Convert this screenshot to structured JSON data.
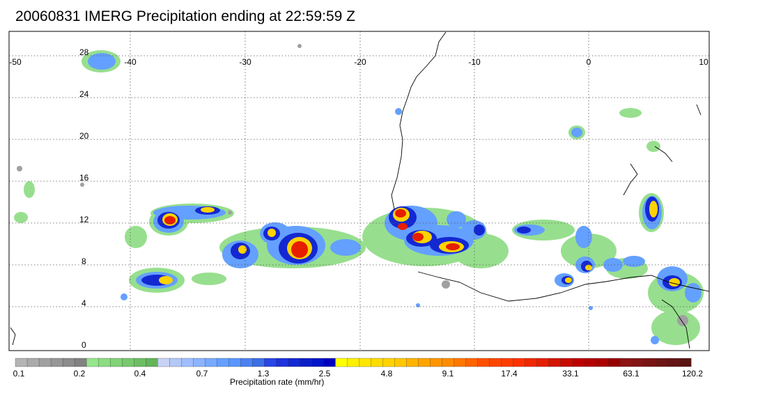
{
  "title": "20060831 IMERG Precipitation ending at 22:59:59 Z",
  "map": {
    "lon_labels": [
      "-50",
      "-40",
      "-30",
      "-20",
      "-10",
      "0",
      "10"
    ],
    "lat_labels": [
      "28",
      "24",
      "20",
      "16",
      "12",
      "8",
      "4",
      "0"
    ],
    "lon_range": [
      -50,
      10
    ],
    "lat_range": [
      0,
      30
    ],
    "grid": "dotted"
  },
  "colorbar": {
    "label": "Precipitation rate (mm/hr)",
    "tick_labels": [
      "0.1",
      "0.2",
      "0.4",
      "0.7",
      "1.3",
      "2.5",
      "4.8",
      "9.1",
      "17.4",
      "33.1",
      "63.1",
      "120.2"
    ],
    "colors": [
      "#b4b4b4",
      "#aaaaaa",
      "#a0a0a0",
      "#969696",
      "#8c8c8c",
      "#828282",
      "#96e68c",
      "#8cdc82",
      "#82d278",
      "#78c86e",
      "#6ebe64",
      "#64b45a",
      "#c8d2f5",
      "#b4c8f5",
      "#a0beff",
      "#8cb4ff",
      "#78aaff",
      "#64a0ff",
      "#5a96ff",
      "#4b82f0",
      "#3c6ee6",
      "#2846e6",
      "#1e32dc",
      "#1428d2",
      "#0a1ec8",
      "#0014c8",
      "#0000be",
      "#ffff00",
      "#fff000",
      "#ffe600",
      "#ffdc00",
      "#ffd200",
      "#ffc800",
      "#ffb400",
      "#ffa500",
      "#ff9600",
      "#ff8c00",
      "#ff7800",
      "#ff6400",
      "#ff5000",
      "#ff4600",
      "#ff3c00",
      "#ff3200",
      "#f02800",
      "#e61e00",
      "#d21400",
      "#c80a00",
      "#be0000",
      "#b40000",
      "#aa0000",
      "#960000",
      "#8c1414",
      "#821414",
      "#781414",
      "#6e1414",
      "#641414",
      "#5a1414"
    ]
  }
}
